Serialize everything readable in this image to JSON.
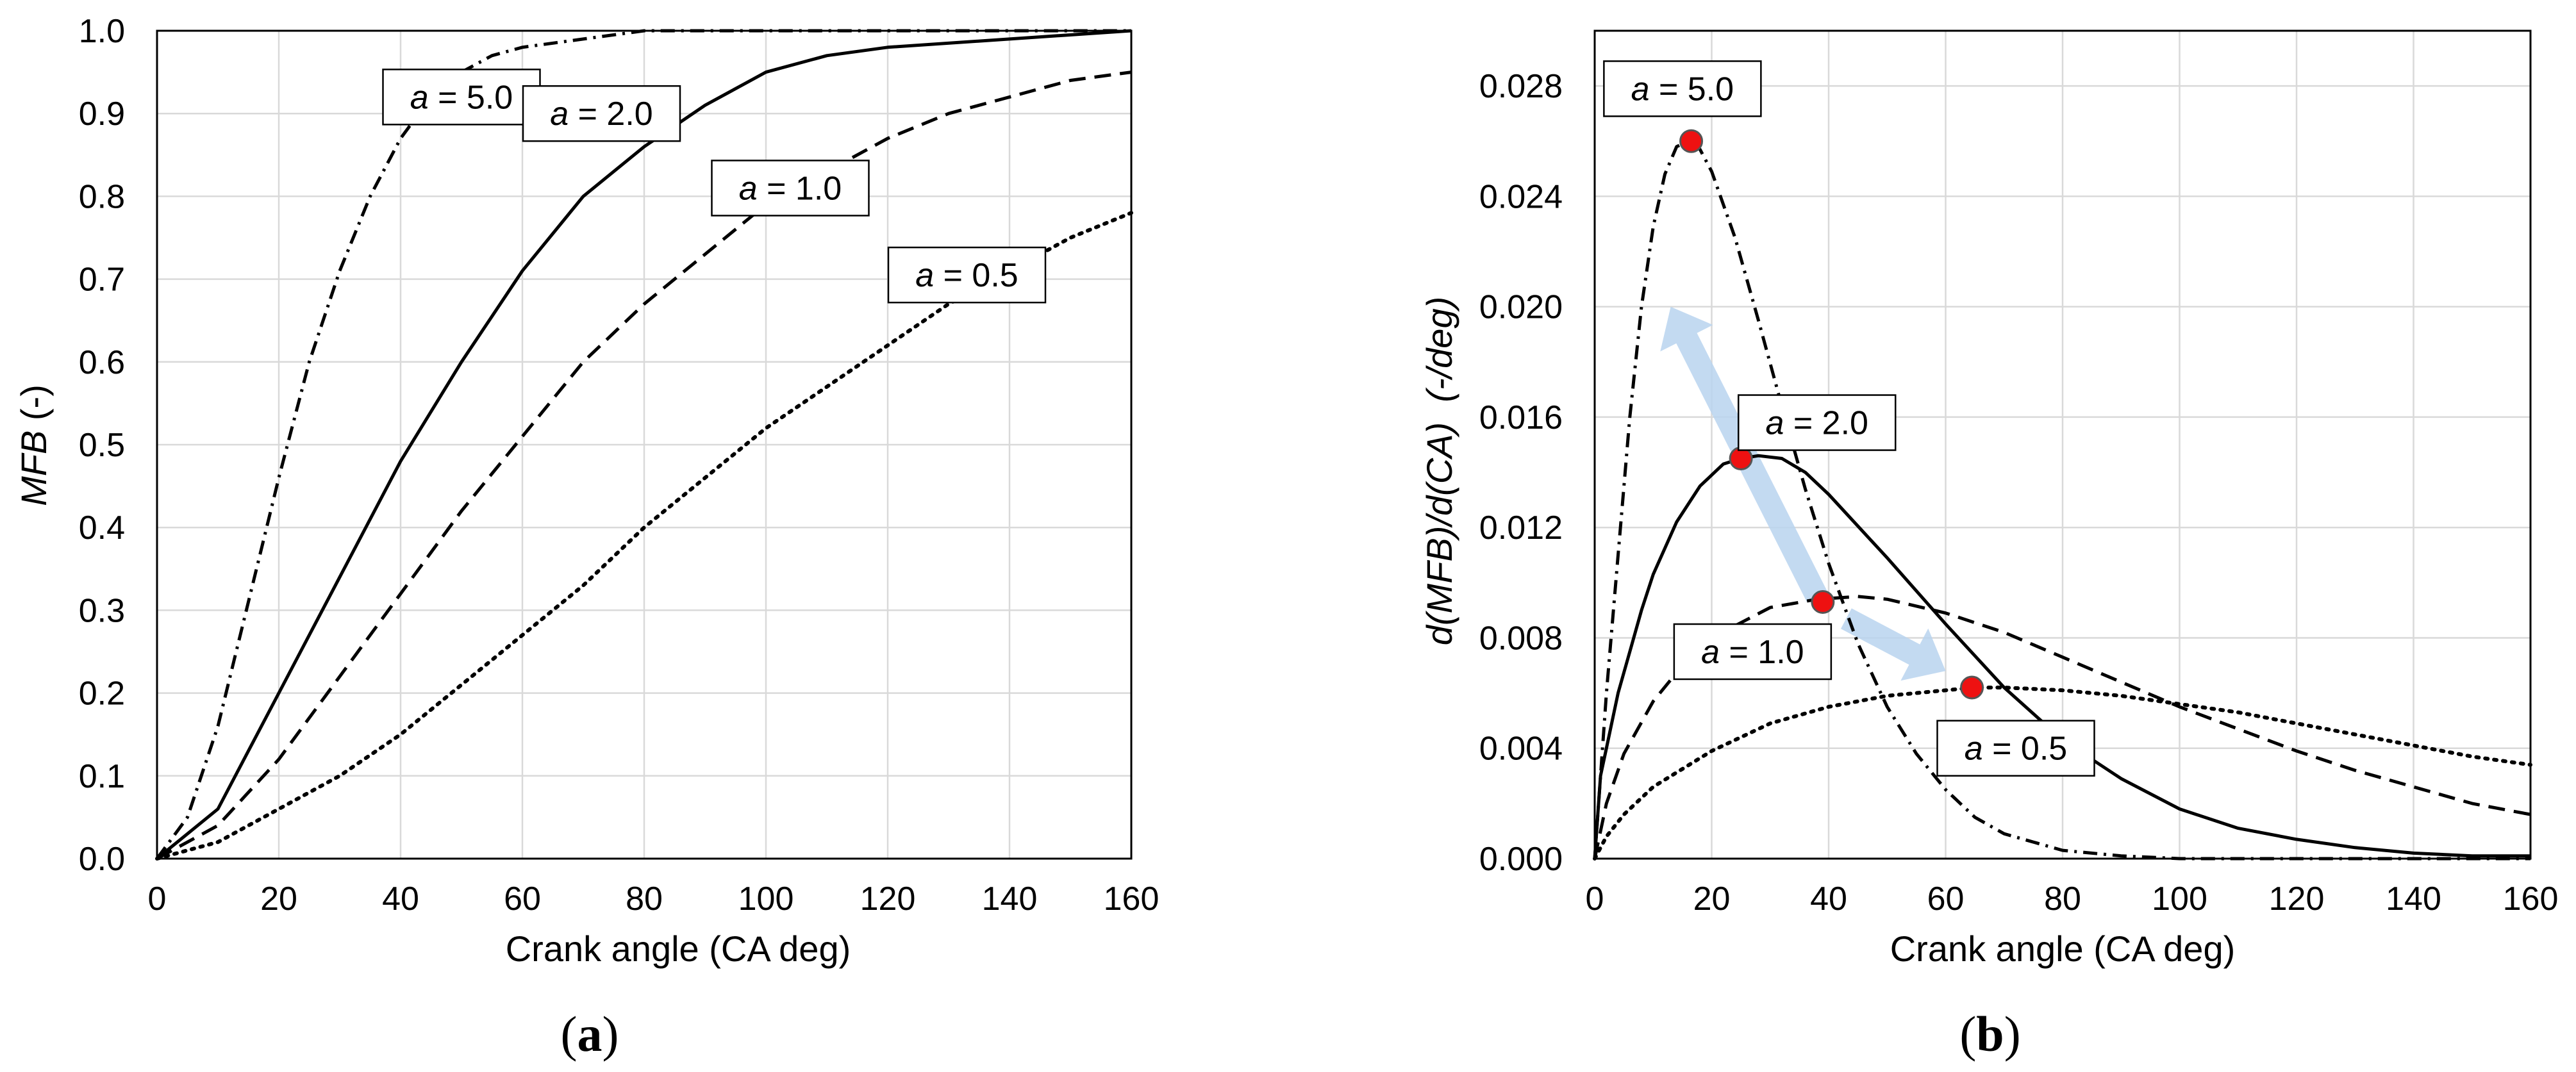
{
  "chart_data": [
    {
      "panel": "(a)",
      "panel_parts": {
        "open": "(",
        "letter": "a",
        "close": ")"
      },
      "type": "line",
      "xlabel": "Crank angle (CA deg)",
      "ylabel": "MFB  (-)",
      "xlim": [
        0,
        160
      ],
      "ylim": [
        0,
        1.0
      ],
      "xticks": [
        0,
        20,
        40,
        60,
        80,
        100,
        120,
        140,
        160
      ],
      "xtick_labels": [
        "0",
        "20",
        "40",
        "60",
        "80",
        "100",
        "120",
        "140",
        "160"
      ],
      "yticks": [
        0,
        0.1,
        0.2,
        0.3,
        0.4,
        0.5,
        0.6,
        0.7,
        0.8,
        0.9,
        1.0
      ],
      "ytick_labels": [
        "0.0",
        "0.1",
        "0.2",
        "0.3",
        "0.4",
        "0.5",
        "0.6",
        "0.7",
        "0.8",
        "0.9",
        "1.0"
      ],
      "grid": true,
      "series": [
        {
          "name": "a = 5.0",
          "style": "dashdot",
          "x": [
            0,
            5,
            10,
            15,
            20,
            25,
            30,
            35,
            40,
            45,
            50,
            55,
            60,
            70,
            80,
            100,
            160
          ],
          "values": [
            0,
            0.05,
            0.16,
            0.31,
            0.46,
            0.6,
            0.71,
            0.8,
            0.87,
            0.92,
            0.95,
            0.97,
            0.98,
            0.99,
            1.0,
            1.0,
            1.0
          ]
        },
        {
          "name": "a = 2.0",
          "style": "solid",
          "x": [
            0,
            10,
            20,
            30,
            40,
            50,
            60,
            70,
            80,
            90,
            100,
            110,
            120,
            140,
            160
          ],
          "values": [
            0,
            0.06,
            0.2,
            0.34,
            0.48,
            0.6,
            0.71,
            0.8,
            0.86,
            0.91,
            0.95,
            0.97,
            0.98,
            0.99,
            1.0
          ]
        },
        {
          "name": "a = 1.0",
          "style": "dashed",
          "x": [
            0,
            10,
            20,
            30,
            40,
            50,
            60,
            70,
            80,
            90,
            100,
            110,
            120,
            130,
            140,
            150,
            160
          ],
          "values": [
            0,
            0.04,
            0.12,
            0.22,
            0.32,
            0.42,
            0.51,
            0.6,
            0.67,
            0.73,
            0.79,
            0.83,
            0.87,
            0.9,
            0.92,
            0.94,
            0.95
          ]
        },
        {
          "name": "a = 0.5",
          "style": "dotted",
          "x": [
            0,
            10,
            20,
            30,
            40,
            50,
            60,
            70,
            80,
            90,
            100,
            110,
            120,
            130,
            140,
            150,
            160
          ],
          "values": [
            0,
            0.02,
            0.06,
            0.1,
            0.15,
            0.21,
            0.27,
            0.33,
            0.4,
            0.46,
            0.52,
            0.57,
            0.62,
            0.67,
            0.71,
            0.75,
            0.78
          ]
        }
      ],
      "annotations": [
        {
          "text": "a = 5.0",
          "italic": "a",
          "rest": " = 5.0",
          "x": 50,
          "y": 0.92
        },
        {
          "text": "a = 2.0",
          "italic": "a",
          "rest": " = 2.0",
          "x": 73,
          "y": 0.9
        },
        {
          "text": "a = 1.0",
          "italic": "a",
          "rest": " = 1.0",
          "x": 104,
          "y": 0.81
        },
        {
          "text": "a = 0.5",
          "italic": "a",
          "rest": " = 0.5",
          "x": 133,
          "y": 0.705
        }
      ]
    },
    {
      "panel": "(b)",
      "panel_parts": {
        "open": "(",
        "letter": "b",
        "close": ")"
      },
      "type": "line",
      "xlabel": "Crank angle (CA deg)",
      "ylabel": "d(MFB)/d(CA)  (-/deg)",
      "xlim": [
        0,
        160
      ],
      "ylim": [
        0,
        0.03
      ],
      "xticks": [
        0,
        20,
        40,
        60,
        80,
        100,
        120,
        140,
        160
      ],
      "xtick_labels": [
        "0",
        "20",
        "40",
        "60",
        "80",
        "100",
        "120",
        "140",
        "160"
      ],
      "yticks": [
        0,
        0.004,
        0.008,
        0.012,
        0.016,
        0.02,
        0.024,
        0.028
      ],
      "ytick_labels": [
        "0.000",
        "0.004",
        "0.008",
        "0.012",
        "0.016",
        "0.020",
        "0.024",
        "0.028"
      ],
      "grid": true,
      "series": [
        {
          "name": "a = 5.0",
          "style": "dashdot",
          "x": [
            0,
            2,
            4,
            6,
            8,
            10,
            12,
            14,
            16,
            18,
            20,
            24,
            28,
            32,
            36,
            40,
            45,
            50,
            55,
            60,
            65,
            70,
            80,
            90,
            100,
            160
          ],
          "values": [
            0,
            0.006,
            0.011,
            0.016,
            0.02,
            0.0229,
            0.0248,
            0.0258,
            0.026,
            0.0257,
            0.0249,
            0.0225,
            0.0195,
            0.0164,
            0.0134,
            0.0107,
            0.0078,
            0.0055,
            0.0038,
            0.0025,
            0.0015,
            0.0009,
            0.0003,
            0.0001,
            0.0,
            0.0
          ]
        },
        {
          "name": "a = 2.0",
          "style": "solid",
          "x": [
            0,
            1,
            2,
            4,
            6,
            8,
            10,
            14,
            18,
            22,
            25,
            28,
            32,
            36,
            40,
            50,
            60,
            70,
            80,
            90,
            100,
            110,
            120,
            130,
            140,
            150,
            160
          ],
          "values": [
            0,
            0.003,
            0.004,
            0.006,
            0.0075,
            0.009,
            0.0103,
            0.0122,
            0.0135,
            0.0143,
            0.0145,
            0.0146,
            0.0145,
            0.014,
            0.0132,
            0.0109,
            0.0085,
            0.0062,
            0.0043,
            0.0029,
            0.0018,
            0.0011,
            0.0007,
            0.0004,
            0.0002,
            0.0001,
            0.0001
          ]
        },
        {
          "name": "a = 1.0",
          "style": "dashed",
          "x": [
            0,
            2,
            5,
            10,
            15,
            20,
            30,
            38,
            45,
            50,
            60,
            70,
            80,
            90,
            100,
            110,
            120,
            130,
            140,
            150,
            160
          ],
          "values": [
            0,
            0.002,
            0.0038,
            0.0057,
            0.007,
            0.008,
            0.0091,
            0.0094,
            0.0095,
            0.0094,
            0.0089,
            0.0082,
            0.0073,
            0.0064,
            0.0055,
            0.0047,
            0.0039,
            0.0032,
            0.0026,
            0.002,
            0.0016
          ]
        },
        {
          "name": "a = 0.5",
          "style": "dotted",
          "x": [
            0,
            2,
            5,
            10,
            20,
            30,
            40,
            50,
            60,
            65,
            70,
            80,
            90,
            100,
            110,
            120,
            130,
            140,
            150,
            160
          ],
          "values": [
            0,
            0.0008,
            0.0016,
            0.0026,
            0.0039,
            0.0049,
            0.0055,
            0.0059,
            0.0061,
            0.0062,
            0.0062,
            0.0061,
            0.0059,
            0.0056,
            0.0053,
            0.0049,
            0.0045,
            0.0041,
            0.0037,
            0.0034
          ]
        }
      ],
      "peak_markers": [
        {
          "series": "a = 5.0",
          "x": 16.5,
          "y": 0.026
        },
        {
          "series": "a = 2.0",
          "x": 25,
          "y": 0.0145
        },
        {
          "series": "a = 1.0",
          "x": 39,
          "y": 0.0093
        },
        {
          "series": "a = 0.5",
          "x": 64.5,
          "y": 0.0062
        }
      ],
      "arrows": [
        {
          "from": [
            38,
            0.0095
          ],
          "to": [
            13,
            0.02
          ]
        },
        {
          "from": [
            43,
            0.0087
          ],
          "to": [
            60,
            0.0068
          ]
        }
      ],
      "annotations": [
        {
          "text": "a = 5.0",
          "italic": "a",
          "rest": " = 5.0",
          "x": 15,
          "y": 0.0279
        },
        {
          "text": "a = 2.0",
          "italic": "a",
          "rest": " = 2.0",
          "x": 38,
          "y": 0.0158
        },
        {
          "text": "a = 1.0",
          "italic": "a",
          "rest": " = 1.0",
          "x": 27,
          "y": 0.0075
        },
        {
          "text": "a = 0.5",
          "italic": "a",
          "rest": " = 0.5",
          "x": 72,
          "y": 0.004
        }
      ]
    }
  ],
  "colors": {
    "marker_fill": "#ee1111",
    "marker_stroke": "#555555",
    "arrow": "#b9d3ee",
    "grid": "#d9d9d9",
    "line": "#000000"
  }
}
